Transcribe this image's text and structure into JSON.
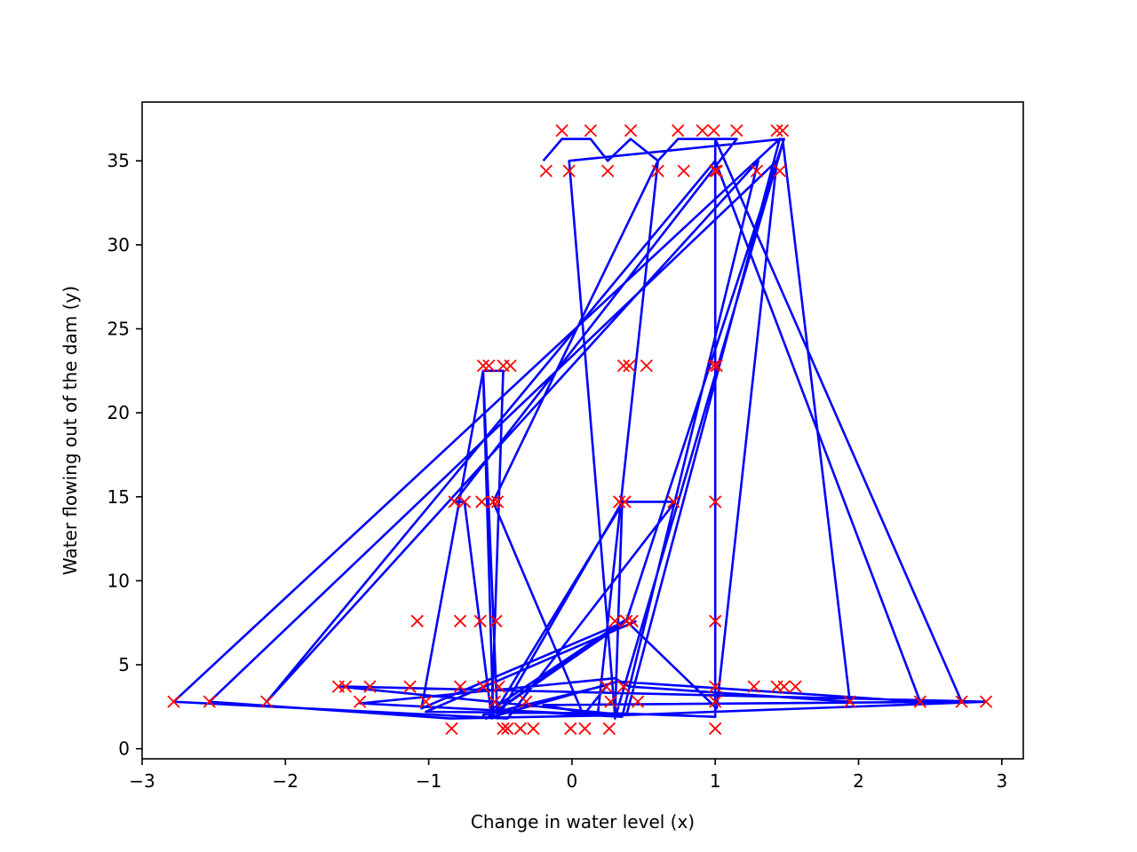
{
  "chart_data": {
    "type": "line",
    "title": "",
    "xlabel": "Change in water level (x)",
    "ylabel": "Water flowing out of the dam (y)",
    "xlim": [
      -3.0,
      3.15
    ],
    "ylim": [
      -0.6,
      38.5
    ],
    "xticks": [
      -3,
      -2,
      -1,
      0,
      1,
      2,
      3
    ],
    "yticks": [
      0,
      5,
      10,
      15,
      20,
      25,
      30,
      35
    ],
    "xtick_labels": [
      "−3",
      "−2",
      "−1",
      "0",
      "1",
      "2",
      "3"
    ],
    "ytick_labels": [
      "0",
      "5",
      "10",
      "15",
      "20",
      "25",
      "30",
      "35"
    ],
    "grid": false,
    "legend": "none",
    "series": [
      {
        "kind": "scatter",
        "marker": "x",
        "color": "#ff0000",
        "x": [
          -0.07,
          0.13,
          0.41,
          0.74,
          0.91,
          0.99,
          1.15,
          1.43,
          1.47,
          -0.18,
          -0.02,
          0.25,
          0.6,
          0.78,
          1.0,
          1.01,
          1.29,
          1.45,
          -0.62,
          -0.58,
          -0.48,
          -0.43,
          0.36,
          0.4,
          0.52,
          0.99,
          1.01,
          -0.82,
          -0.75,
          -0.63,
          -0.55,
          -0.52,
          0.33,
          0.37,
          0.71,
          1.0,
          -1.08,
          -0.78,
          -0.64,
          -0.53,
          0.3,
          0.38,
          0.42,
          1.0,
          -1.63,
          -1.58,
          -1.41,
          -1.13,
          -0.78,
          -0.62,
          -0.51,
          0.24,
          0.36,
          1.0,
          1.27,
          1.43,
          1.48,
          1.56,
          -2.78,
          -2.53,
          -2.13,
          -1.48,
          -1.02,
          -0.54,
          -0.32,
          0.27,
          0.46,
          1.0,
          1.94,
          2.43,
          2.72,
          2.89,
          -0.84,
          -0.48,
          -0.45,
          -0.36,
          -0.27,
          -0.01,
          0.09,
          0.26,
          1.0
        ],
        "y": [
          36.8,
          36.8,
          36.8,
          36.8,
          36.8,
          36.8,
          36.8,
          36.8,
          36.8,
          34.4,
          34.4,
          34.4,
          34.4,
          34.4,
          34.4,
          34.4,
          34.4,
          34.4,
          22.8,
          22.8,
          22.8,
          22.8,
          22.8,
          22.8,
          22.8,
          22.8,
          22.8,
          14.7,
          14.7,
          14.7,
          14.7,
          14.7,
          14.7,
          14.7,
          14.7,
          14.7,
          7.6,
          7.6,
          7.6,
          7.6,
          7.6,
          7.6,
          7.6,
          7.6,
          3.7,
          3.7,
          3.7,
          3.7,
          3.7,
          3.7,
          3.7,
          3.7,
          3.7,
          3.7,
          3.7,
          3.7,
          3.7,
          3.7,
          2.8,
          2.8,
          2.8,
          2.8,
          2.8,
          2.8,
          2.8,
          2.8,
          2.8,
          2.8,
          2.8,
          2.8,
          2.8,
          2.8,
          1.2,
          1.2,
          1.2,
          1.2,
          1.2,
          1.2,
          1.2,
          1.2,
          1.2
        ]
      },
      {
        "kind": "line",
        "color": "#0000ff",
        "x": [
          -0.2,
          -0.07,
          0.13,
          0.25,
          0.41,
          0.6,
          0.74,
          0.91,
          1.15,
          -0.82,
          -0.75,
          -0.56,
          -0.48,
          -0.62,
          -0.52,
          0.35,
          0.3,
          1.48,
          0.38,
          -1.05,
          -0.62,
          -0.55,
          0.36,
          0.72,
          -0.45,
          -2.78,
          1.45,
          0.38,
          -1.63,
          -1.58,
          2.89,
          0.36,
          -0.85,
          -2.53,
          1.43,
          1.01,
          0.38,
          -0.6,
          0.32,
          2.43,
          1.0,
          -2.13,
          1.3,
          0.35,
          -1.48,
          0.3,
          0.4,
          1.94,
          1.47,
          -0.02,
          0.3,
          -0.52,
          0.36,
          -0.62,
          0.25,
          0.08,
          -0.55,
          0.6,
          0.18,
          -0.2,
          2.72,
          1.0,
          1.0,
          0.36,
          -1.02,
          0.45
        ],
        "y": [
          35.0,
          36.3,
          36.3,
          35.0,
          36.3,
          35.0,
          36.3,
          36.3,
          36.3,
          14.7,
          14.7,
          1.8,
          22.5,
          22.5,
          1.8,
          14.7,
          1.8,
          36.3,
          7.6,
          2.4,
          22.5,
          2.0,
          14.7,
          14.7,
          1.8,
          2.8,
          36.3,
          2.0,
          3.7,
          3.7,
          2.8,
          2.0,
          1.8,
          2.8,
          35.0,
          2.4,
          7.6,
          1.8,
          4.0,
          2.8,
          35.0,
          2.8,
          35.0,
          1.9,
          2.7,
          4.2,
          3.7,
          2.8,
          36.3,
          35.0,
          2.0,
          2.3,
          7.6,
          2.0,
          3.8,
          2.0,
          14.7,
          35.0,
          2.0,
          2.6,
          2.8,
          36.3,
          1.9,
          2.1,
          2.2,
          7.6
        ]
      }
    ]
  }
}
